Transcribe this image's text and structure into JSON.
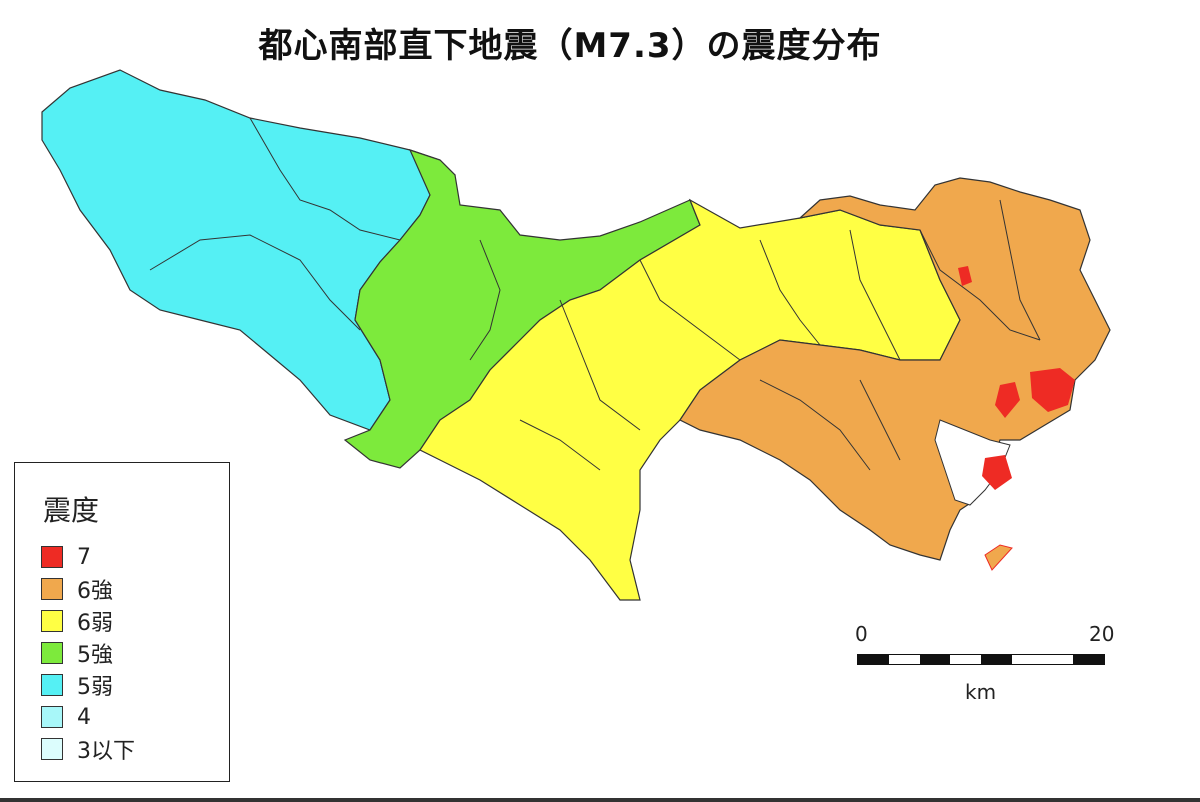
{
  "title": "都心南部直下地震（M7.3）の震度分布",
  "legend": {
    "title": "震度",
    "items": [
      {
        "label": "7",
        "color": "#ee2b24"
      },
      {
        "label": "6強",
        "color": "#f0a84d"
      },
      {
        "label": "6弱",
        "color": "#ffff44"
      },
      {
        "label": "5強",
        "color": "#7dea3c"
      },
      {
        "label": "5弱",
        "color": "#55f0f4"
      },
      {
        "label": "4",
        "color": "#a8f7f9"
      },
      {
        "label": "3以下",
        "color": "#dcfdfd"
      }
    ]
  },
  "scale": {
    "min_label": "0",
    "max_label": "20",
    "unit": "km"
  },
  "colors": {
    "intensity_7": "#ee2b24",
    "intensity_6_upper": "#f0a84d",
    "intensity_6_lower": "#ffff44",
    "intensity_5_upper": "#7dea3c",
    "intensity_5_lower": "#55f0f4",
    "intensity_4": "#a8f7f9",
    "border": "#333333"
  }
}
